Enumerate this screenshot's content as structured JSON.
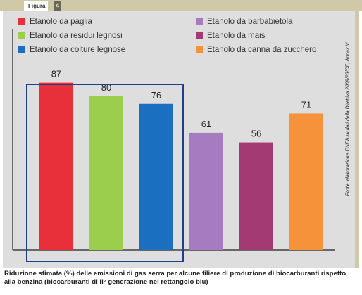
{
  "header": {
    "figure_label": "Figura",
    "figure_number": "4"
  },
  "source_note": "Fonte: elaborazione ENEA su dati della Direttiva 2009/28/CE, Annex V",
  "caption": "Riduzione stimata (%) delle emissioni di gas serra per alcune filiere di produzione di biocarburanti rispetto alla benzina (biocarburanti di II° generazione nel rettangolo blu)",
  "chart_data": {
    "type": "bar",
    "categories": [
      "Etanolo da paglia",
      "Etanolo da residui legnosi",
      "Etanolo da colture legnose",
      "Etanolo da barbabietola",
      "Etanolo da mais",
      "Etanolo da canna da zucchero"
    ],
    "values": [
      87,
      80,
      76,
      61,
      56,
      71
    ],
    "data_labels": [
      "87",
      "80",
      "76",
      "61",
      "56",
      "71"
    ],
    "colors": [
      "#e8303a",
      "#9cce4e",
      "#1a6fc0",
      "#a77bbf",
      "#a33a74",
      "#f5923a"
    ],
    "ylim": [
      0,
      100
    ],
    "grid": false,
    "legend_position": "top",
    "highlight": {
      "from": 0,
      "to": 2,
      "color": "#1d3f8c"
    }
  }
}
